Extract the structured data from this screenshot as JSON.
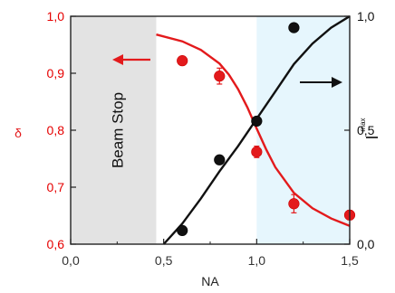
{
  "chart_data": {
    "type": "scatter",
    "xlabel": "NA",
    "ylabel_left": "δ",
    "ylabel_right_main": "I",
    "ylabel_right_sub": "max",
    "xlim": [
      0.0,
      1.5
    ],
    "ylim_left": [
      0.6,
      1.0
    ],
    "ylim_right": [
      0.0,
      1.0
    ],
    "x_ticks": [
      "0,0",
      "0,5",
      "1,0",
      "1,5"
    ],
    "left_ticks": [
      "0,6",
      "0,7",
      "0,8",
      "0,9",
      "1,0"
    ],
    "right_ticks": [
      "0,0",
      "0,5",
      "1,0"
    ],
    "grid": false,
    "regions": [
      {
        "label": "Beam Stop",
        "x_start": 0.0,
        "x_end": 0.46,
        "color": "#e3e3e3"
      },
      {
        "label": "",
        "x_start": 1.0,
        "x_end": 1.5,
        "color": "#e6f6fd"
      }
    ],
    "series": [
      {
        "axis": "left",
        "color": "#e31a1c",
        "x": [
          0.6,
          0.8,
          1.0,
          1.2,
          1.5
        ],
        "values": [
          0.922,
          0.895,
          0.762,
          0.671,
          0.651
        ],
        "errors": [
          0.006,
          0.014,
          0.01,
          0.016,
          0.008
        ],
        "fit": {
          "x": [
            0.46,
            0.6,
            0.7,
            0.8,
            0.85,
            0.9,
            0.95,
            1.0,
            1.05,
            1.1,
            1.2,
            1.3,
            1.4,
            1.5
          ],
          "values": [
            0.968,
            0.956,
            0.941,
            0.917,
            0.898,
            0.872,
            0.84,
            0.803,
            0.767,
            0.735,
            0.69,
            0.663,
            0.645,
            0.632
          ]
        }
      },
      {
        "axis": "right",
        "color": "#111111",
        "x": [
          0.6,
          0.8,
          1.0,
          1.2
        ],
        "values": [
          0.06,
          0.37,
          0.54,
          0.95
        ],
        "fit": {
          "x": [
            0.5,
            0.6,
            0.7,
            0.8,
            0.9,
            1.0,
            1.1,
            1.2,
            1.3,
            1.4,
            1.5
          ],
          "values": [
            0.0,
            0.09,
            0.2,
            0.32,
            0.43,
            0.55,
            0.67,
            0.79,
            0.88,
            0.95,
            1.0
          ]
        }
      }
    ],
    "arrows": [
      {
        "direction": "left",
        "color": "#e31a1c",
        "points_to": "left-axis"
      },
      {
        "direction": "right",
        "color": "#111111",
        "points_to": "right-axis"
      }
    ]
  }
}
